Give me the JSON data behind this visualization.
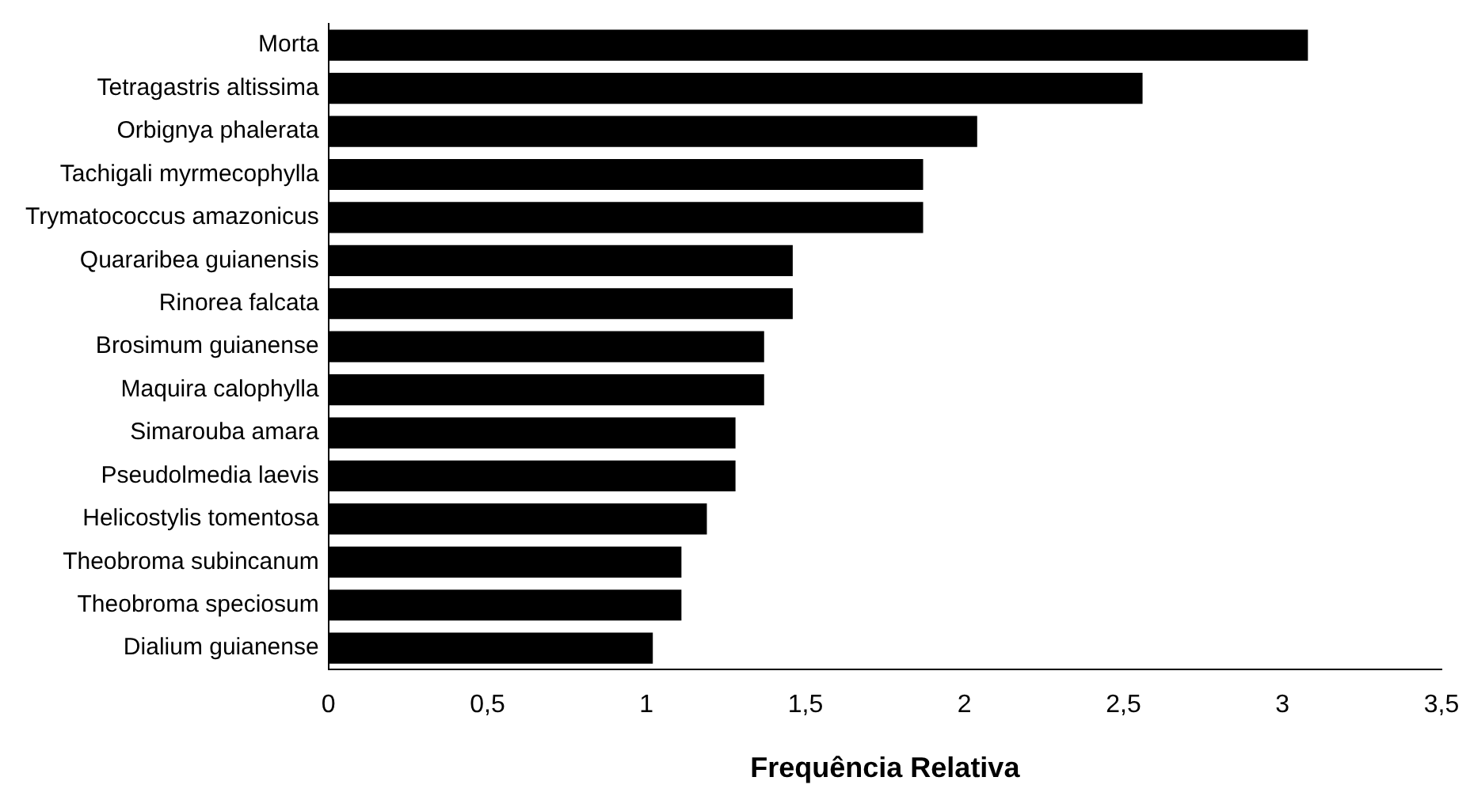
{
  "chart_data": {
    "type": "bar",
    "orientation": "horizontal",
    "xlabel": "Frequência Relativa",
    "categories": [
      "Morta",
      "Tetragastris altissima",
      "Orbignya phalerata",
      "Tachigali myrmecophylla",
      "Trymatococcus amazonicus",
      "Quararibea guianensis",
      "Rinorea falcata",
      "Brosimum guianense",
      "Maquira calophylla",
      "Simarouba amara",
      "Pseudolmedia laevis",
      "Helicostylis tomentosa",
      "Theobroma subincanum",
      "Theobroma speciosum",
      "Dialium guianense"
    ],
    "values": [
      3.08,
      2.56,
      2.04,
      1.87,
      1.87,
      1.46,
      1.46,
      1.37,
      1.37,
      1.28,
      1.28,
      1.19,
      1.11,
      1.11,
      1.02
    ],
    "color": "#000000",
    "xlim": [
      0,
      3.5
    ],
    "xticks": [
      0,
      {
        "value": 0.5,
        "label": "0,5"
      },
      1,
      {
        "value": 1.5,
        "label": "1,5"
      },
      2,
      {
        "value": 2.5,
        "label": "2,5"
      },
      3,
      {
        "value": 3.5,
        "label": "3,5"
      }
    ],
    "grid": false,
    "legend": false
  }
}
